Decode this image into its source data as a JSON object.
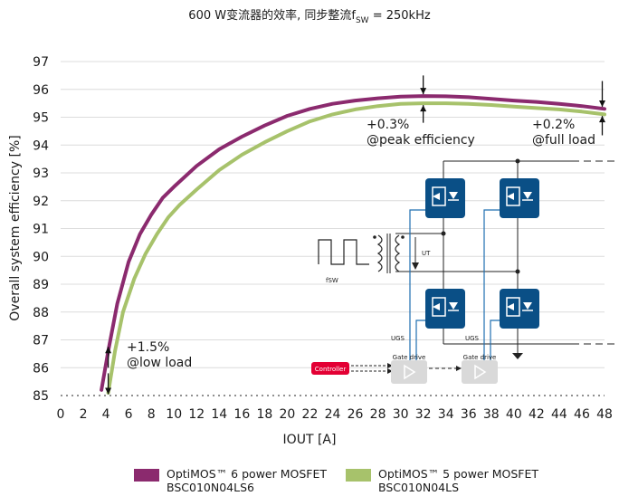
{
  "chart_data": {
    "type": "line",
    "title": "600 W变流器的效率, 同步整流f",
    "title_sub": "SW",
    "title_tail": " = 250kHz",
    "xlabel": "IOUT [A]",
    "ylabel": "Overall system efficiency [%]",
    "xlim": [
      0,
      48
    ],
    "ylim": [
      85,
      97
    ],
    "xticks": [
      0,
      2,
      4,
      6,
      8,
      10,
      12,
      14,
      16,
      18,
      20,
      22,
      24,
      26,
      28,
      30,
      32,
      34,
      36,
      38,
      40,
      42,
      44,
      46,
      48
    ],
    "yticks": [
      85,
      86,
      87,
      88,
      89,
      90,
      91,
      92,
      93,
      94,
      95,
      96,
      97
    ],
    "grid": "horizontal",
    "legend_position": "bottom",
    "series": [
      {
        "name": "OptiMOS™ 6 power MOSFET",
        "part": "BSC010N04LS6",
        "color": "#8b2a6e",
        "x": [
          3.6,
          4.2,
          5,
          6,
          7,
          8,
          9,
          10,
          12,
          14,
          16,
          18,
          20,
          22,
          24,
          26,
          28,
          30,
          32,
          34,
          36,
          38,
          40,
          42,
          44,
          46,
          48
        ],
        "y": [
          85.2,
          86.6,
          88.3,
          89.8,
          90.8,
          91.5,
          92.1,
          92.5,
          93.25,
          93.85,
          94.3,
          94.7,
          95.05,
          95.3,
          95.48,
          95.6,
          95.68,
          95.74,
          95.76,
          95.75,
          95.72,
          95.66,
          95.6,
          95.55,
          95.48,
          95.4,
          95.3
        ]
      },
      {
        "name": "OptiMOS™ 5 power MOSFET",
        "part": "BSC010N04LS",
        "color": "#a7c26b",
        "x": [
          4.2,
          4.8,
          5.5,
          6.5,
          7.5,
          8.5,
          9.5,
          10.5,
          12,
          14,
          16,
          18,
          20,
          22,
          24,
          26,
          28,
          30,
          32,
          34,
          36,
          38,
          40,
          42,
          44,
          46,
          48
        ],
        "y": [
          85.1,
          86.6,
          88.0,
          89.2,
          90.1,
          90.8,
          91.4,
          91.85,
          92.4,
          93.1,
          93.65,
          94.1,
          94.5,
          94.85,
          95.1,
          95.28,
          95.4,
          95.48,
          95.5,
          95.5,
          95.48,
          95.44,
          95.38,
          95.33,
          95.28,
          95.2,
          95.1
        ]
      }
    ],
    "annotations": [
      {
        "text_line1": "+1.5%",
        "text_line2": "@low load"
      },
      {
        "text_line1": "+0.3%",
        "text_line2": "@peak efficiency"
      },
      {
        "text_line1": "+0.2%",
        "text_line2": "@full load"
      }
    ],
    "schematic": {
      "label_fsw": "fSW",
      "label_ut": "UT",
      "label_ugs_left": "UGS",
      "label_ugs_right": "UGS",
      "controller": "Controller",
      "gate_drive_1": "Gate drive",
      "gate_drive_2": "Gate drive"
    }
  },
  "colors": {
    "mosfet_blue": "#0a4f86",
    "controller_red": "#e30034",
    "gate_drive_gray": "#d9d9d9"
  }
}
